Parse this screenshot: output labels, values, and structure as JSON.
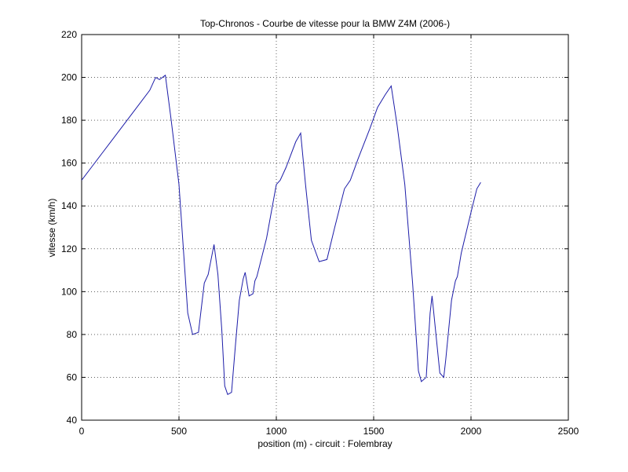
{
  "chart_data": {
    "type": "line",
    "title": "Top-Chronos - Courbe de vitesse pour la BMW Z4M (2006-)",
    "x_label": "position (m) - circuit : Folembray",
    "y_label": "vitesse (km/h)",
    "x": [
      0,
      50,
      100,
      150,
      200,
      250,
      300,
      350,
      380,
      400,
      430,
      460,
      500,
      530,
      545,
      570,
      600,
      630,
      650,
      680,
      700,
      720,
      735,
      750,
      770,
      790,
      810,
      830,
      840,
      860,
      880,
      890,
      900,
      950,
      1000,
      1020,
      1050,
      1100,
      1125,
      1150,
      1180,
      1220,
      1260,
      1300,
      1350,
      1380,
      1420,
      1480,
      1520,
      1560,
      1590,
      1620,
      1660,
      1700,
      1730,
      1745,
      1770,
      1790,
      1800,
      1820,
      1840,
      1860,
      1870,
      1900,
      1920,
      1930,
      1950,
      2000,
      2030,
      2050
    ],
    "series": [
      {
        "color": "#1c1ca8",
        "values": [
          152,
          158,
          164,
          170,
          176,
          182,
          188,
          194,
          200,
          199,
          201,
          180,
          150,
          110,
          90,
          80,
          81,
          104,
          108,
          122,
          108,
          82,
          56,
          52,
          53,
          75,
          96,
          106,
          109,
          98,
          99,
          105,
          107,
          125,
          150,
          152,
          158,
          170,
          174,
          150,
          124,
          114,
          115,
          130,
          148,
          152,
          162,
          176,
          186,
          192,
          196,
          178,
          150,
          104,
          63,
          58,
          60,
          90,
          98,
          80,
          62,
          60,
          68,
          96,
          105,
          107,
          118,
          137,
          148,
          151
        ]
      }
    ],
    "xlim": [
      0,
      2500
    ],
    "xticks": [
      0,
      500,
      1000,
      1500,
      2000,
      2500
    ],
    "ylim": [
      40,
      220
    ],
    "yticks": [
      40,
      60,
      80,
      100,
      120,
      140,
      160,
      180,
      200,
      220
    ],
    "grid": true
  }
}
